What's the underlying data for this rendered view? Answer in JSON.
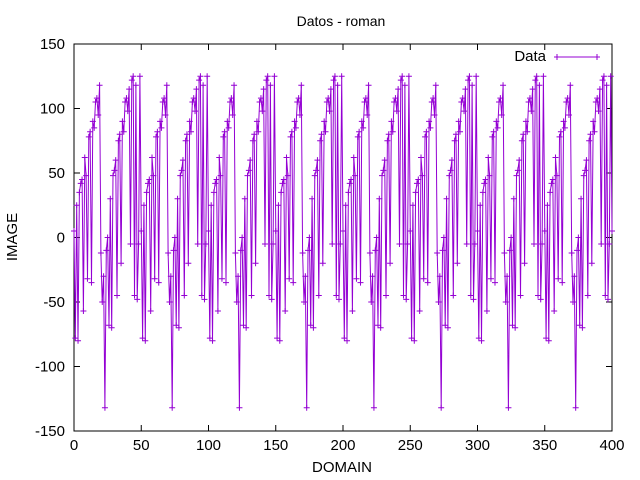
{
  "chart_data": {
    "type": "line",
    "title": "Datos - roman",
    "xlabel": "DOMAIN",
    "ylabel": "IMAGE",
    "xlim": [
      0,
      400
    ],
    "ylim": [
      -150,
      150
    ],
    "xticks": [
      "0",
      "50",
      "100",
      "150",
      "200",
      "250",
      "300",
      "350",
      "400"
    ],
    "yticks": [
      "-150",
      "-100",
      "-50",
      "0",
      "50",
      "100",
      "150"
    ],
    "grid": false,
    "legend": "top-right",
    "series": [
      {
        "name": "Data",
        "color": "#9400d3",
        "marker": "plus",
        "period_x": 50,
        "points_per_period": 50,
        "description": "sawtooth-like periodic signal, each cycle rising from about -130 near the cycle start to about 125 near x = 38 + 50k, with alternating low dips",
        "values": [
          5,
          12,
          -78,
          18,
          25,
          -80,
          28,
          35,
          30,
          42,
          -55,
          45,
          52,
          -57,
          58,
          62,
          48,
          68,
          -32,
          72,
          78,
          60,
          82,
          88,
          -35,
          90,
          95,
          85,
          100,
          105,
          -10,
          108,
          112,
          95,
          114,
          118,
          -12,
          -130,
          -50,
          -40,
          -30,
          -45,
          -132,
          -20,
          -10,
          0,
          10,
          -68,
          20,
          30,
          35,
          -70,
          40,
          48,
          52,
          -42,
          60,
          65,
          -45,
          70,
          75,
          58,
          80,
          85,
          -20,
          90,
          95,
          82,
          100,
          105,
          -25,
          108,
          112,
          98,
          115,
          118,
          -5,
          120,
          122,
          102,
          125,
          110,
          -45,
          115,
          118,
          -48,
          120,
          -5,
          122,
          125
        ]
      }
    ]
  }
}
